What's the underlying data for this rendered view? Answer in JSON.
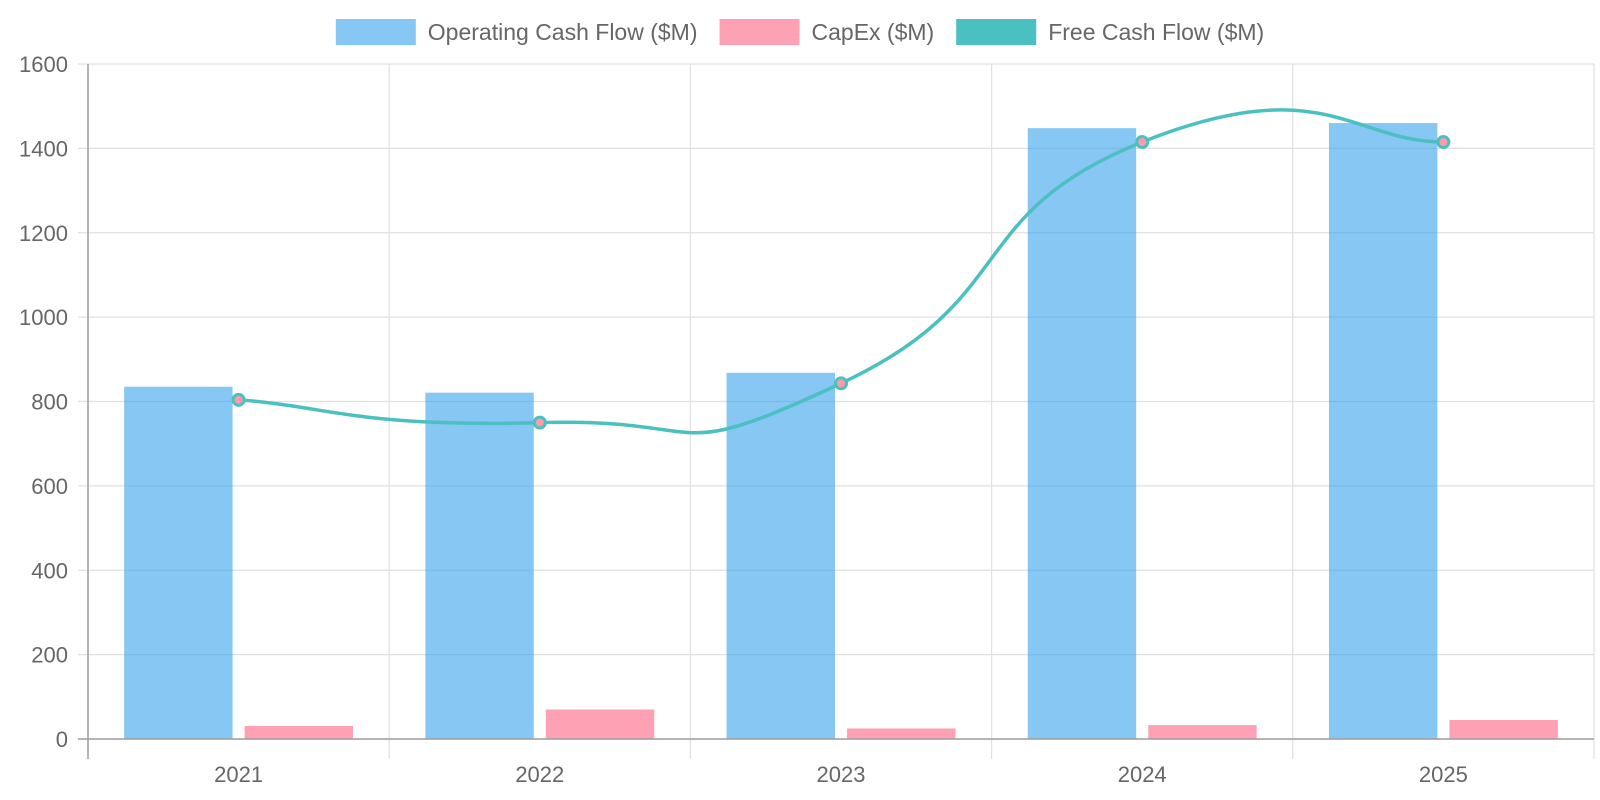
{
  "chart_data": {
    "type": "bar",
    "categories": [
      "2021",
      "2022",
      "2023",
      "2024",
      "2025"
    ],
    "series": [
      {
        "name": "Operating Cash Flow ($M)",
        "kind": "bar",
        "color": "#36a2eb",
        "values": [
          835,
          821,
          868,
          1448,
          1460
        ]
      },
      {
        "name": "CapEx ($M)",
        "kind": "bar",
        "color": "#ff6384",
        "values": [
          31,
          70,
          25,
          33,
          45
        ]
      },
      {
        "name": "Free Cash Flow ($M)",
        "kind": "line",
        "color": "#4bc0c0",
        "values": [
          804,
          750,
          843,
          1415,
          1415
        ]
      }
    ],
    "ylim": [
      0,
      1600
    ],
    "yticks": [
      0,
      200,
      400,
      600,
      800,
      1000,
      1200,
      1400,
      1600
    ],
    "legend_position": "top",
    "grid": true
  }
}
